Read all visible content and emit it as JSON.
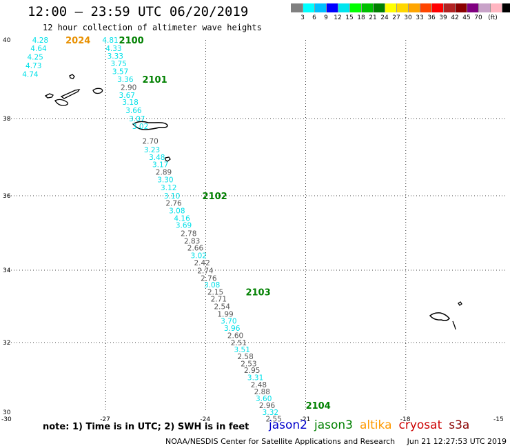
{
  "header": {
    "title": "12:00 – 23:59 UTC 06/20/2019",
    "subtitle": "12 hour collection of altimeter wave heights"
  },
  "color_scale": {
    "unit": "(ft)",
    "colors": [
      "#808080",
      "#00ffff",
      "#00bfff",
      "#0000ff",
      "#00e5ee",
      "#00ff00",
      "#00c000",
      "#008000",
      "#ffff00",
      "#ffd700",
      "#ffa500",
      "#ff4500",
      "#ff0000",
      "#b22222",
      "#8b0000",
      "#800080",
      "#c8a2c8",
      "#ffb6c1",
      "#000000"
    ],
    "labels": [
      "3",
      "6",
      "9",
      "12",
      "15",
      "18",
      "21",
      "24",
      "27",
      "30",
      "33",
      "36",
      "39",
      "42",
      "45",
      "70"
    ]
  },
  "map": {
    "lat_labels": [
      "40",
      "38",
      "36",
      "34",
      "32",
      "30"
    ],
    "lon_labels": [
      "-30",
      "-27",
      "-24",
      "-21",
      "-18",
      "-15"
    ],
    "cyan": "#00e0e8",
    "gray": "#555555",
    "green": "#008000",
    "orange": "#e89000",
    "obs": [
      {
        "t": "4.28",
        "c": "cyan",
        "lat": 40.0,
        "lon": -29.2
      },
      {
        "t": "4.64",
        "c": "cyan",
        "lat": 39.79,
        "lon": -29.25
      },
      {
        "t": "4.25",
        "c": "cyan",
        "lat": 39.57,
        "lon": -29.35
      },
      {
        "t": "4.73",
        "c": "cyan",
        "lat": 39.35,
        "lon": -29.4
      },
      {
        "t": "4.74",
        "c": "cyan",
        "lat": 39.13,
        "lon": -29.5
      },
      {
        "t": "4.81",
        "c": "cyan",
        "lat": 40.0,
        "lon": -27.1
      },
      {
        "t": "4.33",
        "c": "cyan",
        "lat": 39.79,
        "lon": -27.0
      },
      {
        "t": "3.33",
        "c": "cyan",
        "lat": 39.6,
        "lon": -26.95
      },
      {
        "t": "3.75",
        "c": "cyan",
        "lat": 39.4,
        "lon": -26.85
      },
      {
        "t": "3.57",
        "c": "cyan",
        "lat": 39.2,
        "lon": -26.8
      },
      {
        "t": "3.36",
        "c": "cyan",
        "lat": 39.0,
        "lon": -26.65
      },
      {
        "t": "2.90",
        "c": "gray",
        "lat": 38.8,
        "lon": -26.55
      },
      {
        "t": "3.67",
        "c": "cyan",
        "lat": 38.6,
        "lon": -26.6
      },
      {
        "t": "3.18",
        "c": "cyan",
        "lat": 38.42,
        "lon": -26.5
      },
      {
        "t": "3.66",
        "c": "cyan",
        "lat": 38.21,
        "lon": -26.4
      },
      {
        "t": "3.07",
        "c": "cyan",
        "lat": 38.0,
        "lon": -26.3
      },
      {
        "t": "3.02",
        "c": "cyan",
        "lat": 37.8,
        "lon": -26.2
      },
      {
        "t": "2.70",
        "c": "gray",
        "lat": 37.42,
        "lon": -25.9
      },
      {
        "t": "3.23",
        "c": "cyan",
        "lat": 37.2,
        "lon": -25.85
      },
      {
        "t": "3.48",
        "c": "cyan",
        "lat": 37.0,
        "lon": -25.7
      },
      {
        "t": "3.17",
        "c": "cyan",
        "lat": 36.81,
        "lon": -25.6
      },
      {
        "t": "2.89",
        "c": "gray",
        "lat": 36.62,
        "lon": -25.5
      },
      {
        "t": "3.30",
        "c": "cyan",
        "lat": 36.42,
        "lon": -25.45
      },
      {
        "t": "3.12",
        "c": "cyan",
        "lat": 36.21,
        "lon": -25.35
      },
      {
        "t": "3.10",
        "c": "cyan",
        "lat": 36.0,
        "lon": -25.25
      },
      {
        "t": "2.76",
        "c": "gray",
        "lat": 35.81,
        "lon": -25.2
      },
      {
        "t": "3.08",
        "c": "cyan",
        "lat": 35.6,
        "lon": -25.1
      },
      {
        "t": "4.16",
        "c": "cyan",
        "lat": 35.4,
        "lon": -24.95
      },
      {
        "t": "3.69",
        "c": "cyan",
        "lat": 35.21,
        "lon": -24.9
      },
      {
        "t": "2.78",
        "c": "gray",
        "lat": 34.99,
        "lon": -24.75
      },
      {
        "t": "2.83",
        "c": "gray",
        "lat": 34.79,
        "lon": -24.65
      },
      {
        "t": "2.66",
        "c": "gray",
        "lat": 34.6,
        "lon": -24.55
      },
      {
        "t": "3.02",
        "c": "cyan",
        "lat": 34.4,
        "lon": -24.45
      },
      {
        "t": "2.42",
        "c": "gray",
        "lat": 34.2,
        "lon": -24.35
      },
      {
        "t": "2.74",
        "c": "gray",
        "lat": 33.99,
        "lon": -24.25
      },
      {
        "t": "2.76",
        "c": "gray",
        "lat": 33.78,
        "lon": -24.15
      },
      {
        "t": "3.08",
        "c": "cyan",
        "lat": 33.6,
        "lon": -24.05
      },
      {
        "t": "2.15",
        "c": "gray",
        "lat": 33.4,
        "lon": -23.95
      },
      {
        "t": "2.71",
        "c": "gray",
        "lat": 33.21,
        "lon": -23.85
      },
      {
        "t": "2.54",
        "c": "gray",
        "lat": 33.0,
        "lon": -23.75
      },
      {
        "t": "1.99",
        "c": "gray",
        "lat": 32.79,
        "lon": -23.65
      },
      {
        "t": "3.70",
        "c": "cyan",
        "lat": 32.6,
        "lon": -23.55
      },
      {
        "t": "3.96",
        "c": "cyan",
        "lat": 32.4,
        "lon": -23.45
      },
      {
        "t": "2.60",
        "c": "gray",
        "lat": 32.2,
        "lon": -23.35
      },
      {
        "t": "2.51",
        "c": "gray",
        "lat": 32.0,
        "lon": -23.25
      },
      {
        "t": "3.51",
        "c": "cyan",
        "lat": 31.8,
        "lon": -23.15
      },
      {
        "t": "2.58",
        "c": "gray",
        "lat": 31.6,
        "lon": -23.05
      },
      {
        "t": "2.53",
        "c": "gray",
        "lat": 31.4,
        "lon": -22.95
      },
      {
        "t": "2.95",
        "c": "gray",
        "lat": 31.21,
        "lon": -22.85
      },
      {
        "t": "3.31",
        "c": "cyan",
        "lat": 31.0,
        "lon": -22.75
      },
      {
        "t": "2.48",
        "c": "gray",
        "lat": 30.79,
        "lon": -22.65
      },
      {
        "t": "2.88",
        "c": "gray",
        "lat": 30.59,
        "lon": -22.55
      },
      {
        "t": "3.60",
        "c": "cyan",
        "lat": 30.4,
        "lon": -22.5
      },
      {
        "t": "2.96",
        "c": "gray",
        "lat": 30.2,
        "lon": -22.4
      },
      {
        "t": "3.32",
        "c": "cyan",
        "lat": 30.0,
        "lon": -22.3
      },
      {
        "t": "2.55",
        "c": "gray",
        "lat": 29.81,
        "lon": -22.2
      },
      {
        "t": "3.22",
        "c": "cyan",
        "lat": 29.61,
        "lon": -22.1
      }
    ],
    "passes": [
      {
        "t": "2024",
        "c": "orange",
        "lat": 40.0,
        "lon": -28.2
      },
      {
        "t": "2100",
        "c": "green",
        "lat": 40.0,
        "lon": -26.6
      },
      {
        "t": "2101",
        "c": "green",
        "lat": 39.0,
        "lon": -25.9
      },
      {
        "t": "2102",
        "c": "green",
        "lat": 36.0,
        "lon": -24.1
      },
      {
        "t": "2103",
        "c": "green",
        "lat": 33.4,
        "lon": -22.8
      },
      {
        "t": "2104",
        "c": "green",
        "lat": 30.2,
        "lon": -21.0
      }
    ]
  },
  "footer": {
    "note": "note: 1) Time is in UTC; 2) SWH is in feet",
    "satellites": [
      {
        "name": "jason2",
        "color": "#0000cc"
      },
      {
        "name": "jason3",
        "color": "#008000"
      },
      {
        "name": "altika",
        "color": "#ff9900"
      },
      {
        "name": "cryosat",
        "color": "#cc0000"
      },
      {
        "name": "s3a",
        "color": "#8b0000"
      }
    ],
    "credit": "NOAA/NESDIS Center for Satellite Applications and Research     Jun 21 12:27:53 UTC 2019"
  }
}
